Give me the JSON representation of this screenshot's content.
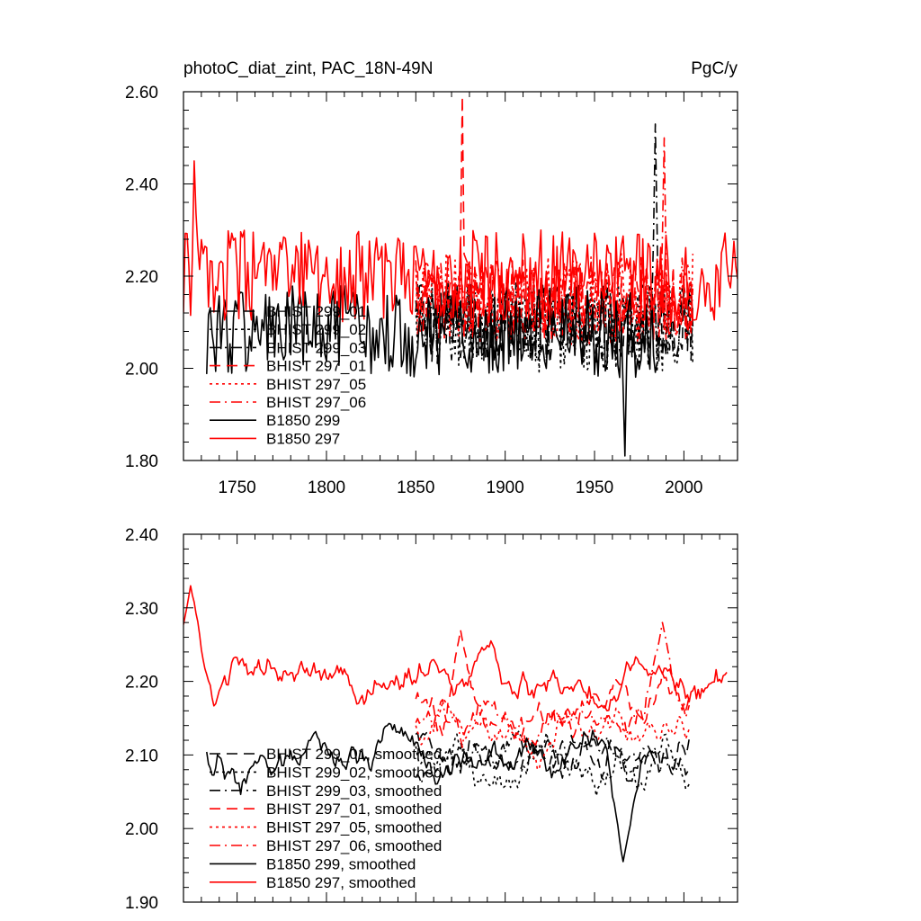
{
  "header": {
    "title_left": "photoC_diat_zint, PAC_18N-49N",
    "title_right": "PgC/y"
  },
  "chart_data": [
    {
      "type": "line",
      "title": "photoC_diat_zint, PAC_18N-49N",
      "units": "PgC/y",
      "xlim": [
        1720,
        2030
      ],
      "ylim": [
        1.8,
        2.6
      ],
      "x_ticks": [
        1750,
        1800,
        1850,
        1900,
        1950,
        2000
      ],
      "x_tick_labels": [
        "1750",
        "1800",
        "1850",
        "1900",
        "1950",
        "2000"
      ],
      "y_ticks": [
        1.8,
        2.0,
        2.2,
        2.4,
        2.6
      ],
      "y_tick_labels": [
        "1.80",
        "2.00",
        "2.20",
        "2.40",
        "2.60"
      ],
      "legend_position": "bottom-left",
      "grid": false,
      "series": [
        {
          "name": "BHIST 299_01",
          "color": "#000000",
          "dash": "dash",
          "x_range": [
            1850,
            2005
          ],
          "mean": 2.1,
          "amp": 0.09
        },
        {
          "name": "BHIST 299_02",
          "color": "#000000",
          "dash": "dot",
          "x_range": [
            1850,
            2005
          ],
          "mean": 2.09,
          "amp": 0.1
        },
        {
          "name": "BHIST 299_03",
          "color": "#000000",
          "dash": "dashdot",
          "x_range": [
            1850,
            2005
          ],
          "mean": 2.1,
          "amp": 0.09,
          "peak": [
            1984,
            2.53
          ]
        },
        {
          "name": "BHIST 297_01",
          "color": "#ff0000",
          "dash": "dash",
          "x_range": [
            1850,
            2005
          ],
          "mean": 2.15,
          "amp": 0.09,
          "peak": [
            1876,
            2.59
          ]
        },
        {
          "name": "BHIST 297_05",
          "color": "#ff0000",
          "dash": "dot",
          "x_range": [
            1850,
            2005
          ],
          "mean": 2.15,
          "amp": 0.1
        },
        {
          "name": "BHIST 297_06",
          "color": "#ff0000",
          "dash": "dashdot",
          "x_range": [
            1850,
            2005
          ],
          "mean": 2.15,
          "amp": 0.09,
          "peak": [
            1989,
            2.5
          ]
        },
        {
          "name": "B1850 299",
          "color": "#000000",
          "dash": "solid",
          "x_range": [
            1733,
            1985
          ],
          "mean": 2.08,
          "amp": 0.1,
          "low": [
            1967,
            1.81
          ]
        },
        {
          "name": "B1850 297",
          "color": "#ff0000",
          "dash": "solid",
          "x_range": [
            1720,
            2030
          ],
          "mean": 2.2,
          "amp": 0.1,
          "peak": [
            1726,
            2.45
          ]
        }
      ]
    },
    {
      "type": "line",
      "xlim": [
        1720,
        2030
      ],
      "ylim": [
        1.9,
        2.4
      ],
      "x_ticks": [
        1750,
        1800,
        1850,
        1900,
        1950,
        2000
      ],
      "y_ticks": [
        1.9,
        2.0,
        2.1,
        2.2,
        2.3,
        2.4
      ],
      "y_tick_labels": [
        "1.90",
        "2.00",
        "2.10",
        "2.20",
        "2.30",
        "2.40"
      ],
      "legend_position": "bottom-left",
      "grid": false,
      "series": [
        {
          "name": "BHIST 299_01, smoothed",
          "color": "#000000",
          "dash": "dash",
          "x_range": [
            1850,
            2003
          ],
          "mean": 2.09,
          "amp": 0.05
        },
        {
          "name": "BHIST 299_02, smoothed",
          "color": "#000000",
          "dash": "dot",
          "x_range": [
            1850,
            2003
          ],
          "mean": 2.09,
          "amp": 0.05
        },
        {
          "name": "BHIST 299_03, smoothed",
          "color": "#000000",
          "dash": "dashdot",
          "x_range": [
            1850,
            2003
          ],
          "mean": 2.1,
          "amp": 0.05
        },
        {
          "name": "BHIST 297_01, smoothed",
          "color": "#ff0000",
          "dash": "dash",
          "x_range": [
            1850,
            2003
          ],
          "mean": 2.15,
          "amp": 0.05,
          "peak": [
            1875,
            2.27
          ]
        },
        {
          "name": "BHIST 297_05, smoothed",
          "color": "#ff0000",
          "dash": "dot",
          "x_range": [
            1850,
            2003
          ],
          "mean": 2.13,
          "amp": 0.05
        },
        {
          "name": "BHIST 297_06, smoothed",
          "color": "#ff0000",
          "dash": "dashdot",
          "x_range": [
            1850,
            2003
          ],
          "mean": 2.15,
          "amp": 0.05,
          "peak": [
            1988,
            2.28
          ]
        },
        {
          "name": "B1850 299, smoothed",
          "color": "#000000",
          "dash": "solid",
          "x_range": [
            1733,
            1984
          ],
          "mean": 2.09,
          "amp": 0.05,
          "low": [
            1966,
            1.955
          ]
        },
        {
          "name": "B1850 297, smoothed",
          "color": "#ff0000",
          "dash": "solid",
          "x_range": [
            1720,
            2024
          ],
          "mean": 2.2,
          "amp": 0.05,
          "peak": [
            1724,
            2.33
          ]
        }
      ]
    }
  ]
}
